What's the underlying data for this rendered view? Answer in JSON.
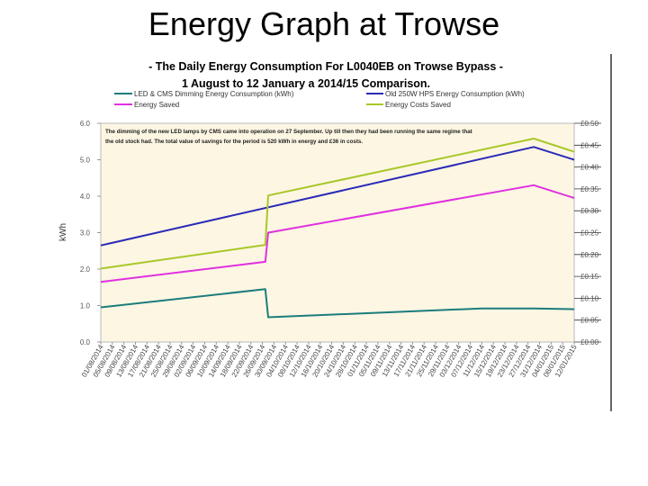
{
  "slide": {
    "title": "Energy Graph at Trowse"
  },
  "chart_data": {
    "type": "line",
    "title": "- The Daily Energy Consumption For L0040EB on Trowse Bypass - 1 August to 12 January a 2014/15 Comparison.",
    "title_lines": [
      "- The Daily Energy Consumption For L0040EB on Trowse Bypass -",
      "1 August to 12 January a  2014/15 Comparison."
    ],
    "ylabel": "kWh",
    "xlabel": "",
    "ylim": [
      0,
      6
    ],
    "y_ticks": [
      "0.0",
      "1.0",
      "2.0",
      "3.0",
      "4.0",
      "5.0",
      "6.0"
    ],
    "y2lim": [
      0,
      0.5
    ],
    "y2_ticks": [
      "£0.00",
      "£0.05",
      "£0.10",
      "£0.15",
      "£0.20",
      "£0.25",
      "£0.30",
      "£0.35",
      "£0.40",
      "£0.45",
      "£0.50"
    ],
    "x_ticks": [
      "01/08/2014",
      "05/08/2014",
      "09/08/2014",
      "13/08/2014",
      "17/08/2014",
      "21/08/2014",
      "25/08/2014",
      "29/08/2014",
      "02/09/2014",
      "06/09/2014",
      "10/09/2014",
      "14/09/2014",
      "18/09/2014",
      "22/09/2014",
      "26/09/2014",
      "30/09/2014",
      "04/10/2014",
      "08/10/2014",
      "12/10/2014",
      "16/10/2014",
      "20/10/2014",
      "24/10/2014",
      "28/10/2014",
      "01/11/2014",
      "05/11/2014",
      "09/11/2014",
      "13/11/2014",
      "17/11/2014",
      "21/11/2014",
      "25/11/2014",
      "29/11/2014",
      "03/12/2014",
      "07/12/2014",
      "11/12/2014",
      "15/12/2014",
      "19/12/2014",
      "23/12/2014",
      "27/12/2014",
      "31/12/2014",
      "04/01/2015",
      "08/01/2015",
      "12/01/2015"
    ],
    "annotation_lines": [
      "The dimming of the new LED lamps by CMS came into operation on 27 September. Up till then they had been running the same regime that",
      "the old stock had. The total value of savings for the period is 520 kWh in energy and £36 in costs."
    ],
    "legend_position": "top",
    "grid": false,
    "background": "#fdf6e3",
    "series": [
      {
        "name": "LED & CMS Dimming Energy Consumption (kWh)",
        "color": "#1b7c7c",
        "axis": "left",
        "x": [
          0,
          57,
          58,
          132,
          150,
          164
        ],
        "y": [
          0.95,
          1.45,
          0.68,
          0.92,
          0.92,
          0.9
        ]
      },
      {
        "name": "Old 250W HPS Energy Consumption (kWh)",
        "color": "#2a2ab8",
        "axis": "left",
        "x": [
          0,
          150,
          164
        ],
        "y": [
          2.65,
          5.35,
          5.0
        ]
      },
      {
        "name": "Energy Saved",
        "color": "#e030e0",
        "axis": "left",
        "x": [
          0,
          57,
          58,
          150,
          164
        ],
        "y": [
          1.65,
          2.2,
          3.0,
          4.3,
          3.95
        ]
      },
      {
        "name": "Energy Costs Saved",
        "color": "#a8c828",
        "axis": "right",
        "x": [
          0,
          57,
          58,
          150,
          164
        ],
        "y": [
          0.168,
          0.222,
          0.335,
          0.465,
          0.435
        ]
      }
    ]
  }
}
